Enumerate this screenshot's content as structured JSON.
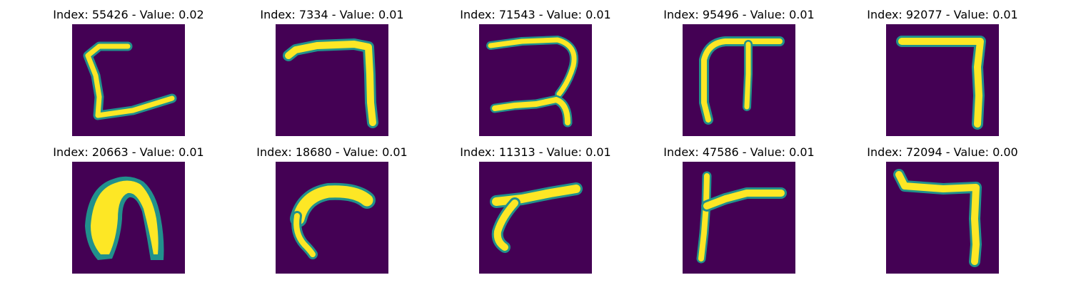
{
  "colors": {
    "background": "#440154",
    "stroke_core": "#fde725",
    "stroke_edge": "#21918c",
    "title_text": "#000000"
  },
  "panels": [
    {
      "title": "Index: 55426 - Value: 0.02"
    },
    {
      "title": "Index: 7334 - Value: 0.01"
    },
    {
      "title": "Index: 71543 - Value: 0.01"
    },
    {
      "title": "Index: 95496 - Value: 0.01"
    },
    {
      "title": "Index: 92077 - Value: 0.01"
    },
    {
      "title": "Index: 20663 - Value: 0.01"
    },
    {
      "title": "Index: 18680 - Value: 0.01"
    },
    {
      "title": "Index: 11313 - Value: 0.01"
    },
    {
      "title": "Index: 47586 - Value: 0.01"
    },
    {
      "title": "Index: 72094 - Value: 0.00"
    }
  ]
}
